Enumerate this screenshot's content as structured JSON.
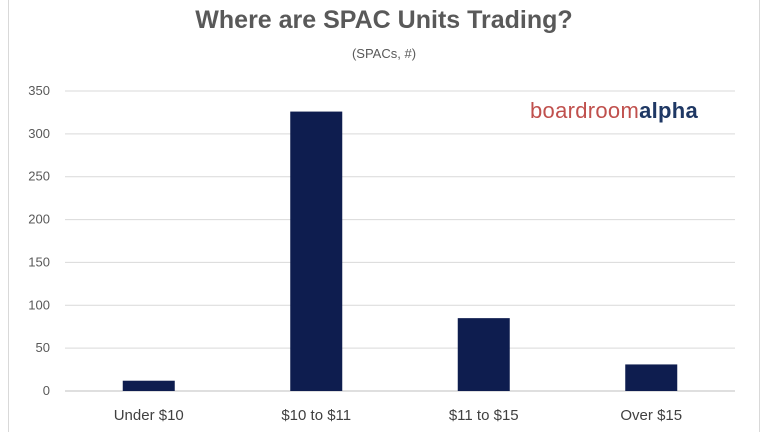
{
  "chart_data": {
    "type": "bar",
    "title": "Where are SPAC Units Trading?",
    "subtitle": "(SPACs, #)",
    "categories": [
      "Under $10",
      "$10 to $11",
      "$11 to $15",
      "Over $15"
    ],
    "values": [
      12,
      326,
      85,
      31
    ],
    "ylim": [
      0,
      350
    ],
    "yticks": [
      0,
      50,
      100,
      150,
      200,
      250,
      300,
      350
    ],
    "grid": true,
    "bar_color": "#0e1d4f",
    "grid_color": "#d9d9d9"
  },
  "logo": {
    "part1": "boardroom",
    "part2": "alpha",
    "color1": "#c0504d",
    "color2": "#1f3864"
  }
}
